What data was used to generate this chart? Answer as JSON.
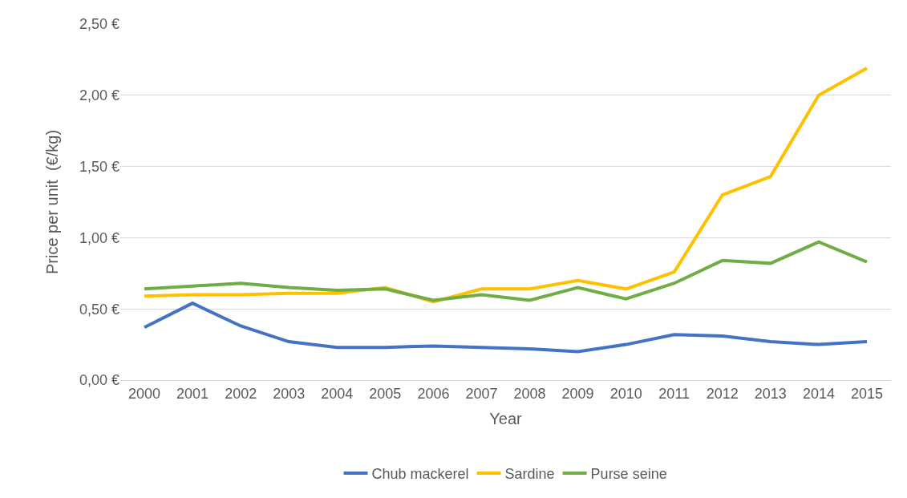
{
  "chart_data": {
    "type": "line",
    "xlabel": "Year",
    "ylabel": "Price per unit  (€/kg)",
    "categories": [
      "2000",
      "2001",
      "2002",
      "2003",
      "2004",
      "2005",
      "2006",
      "2007",
      "2008",
      "2009",
      "2010",
      "2011",
      "2012",
      "2013",
      "2014",
      "2015"
    ],
    "series": [
      {
        "name": "Chub mackerel",
        "color": "#4472c4",
        "values": [
          0.37,
          0.54,
          0.38,
          0.27,
          0.23,
          0.23,
          0.24,
          0.23,
          0.22,
          0.2,
          0.25,
          0.32,
          0.31,
          0.27,
          0.25,
          0.27
        ]
      },
      {
        "name": "Sardine",
        "color": "#ffc000",
        "values": [
          0.59,
          0.6,
          0.6,
          0.61,
          0.61,
          0.65,
          0.55,
          0.64,
          0.64,
          0.7,
          0.64,
          0.76,
          1.3,
          1.43,
          2.0,
          2.19
        ]
      },
      {
        "name": "Purse seine",
        "color": "#70ad47",
        "values": [
          0.64,
          0.66,
          0.68,
          0.65,
          0.63,
          0.64,
          0.56,
          0.6,
          0.56,
          0.65,
          0.57,
          0.68,
          0.84,
          0.82,
          0.97,
          0.83
        ]
      }
    ],
    "ylim": [
      0,
      2.5
    ],
    "yticks": [
      {
        "value": 0,
        "label": "0,00 €"
      },
      {
        "value": 0.5,
        "label": "0,50 €"
      },
      {
        "value": 1,
        "label": "1,00 €"
      },
      {
        "value": 1.5,
        "label": "1,50 €"
      },
      {
        "value": 2,
        "label": "2,00 €"
      },
      {
        "value": 2.5,
        "label": "2,50 €"
      }
    ],
    "grid": "y",
    "legend": "bottom",
    "marker": "none",
    "line_style": "solid"
  }
}
